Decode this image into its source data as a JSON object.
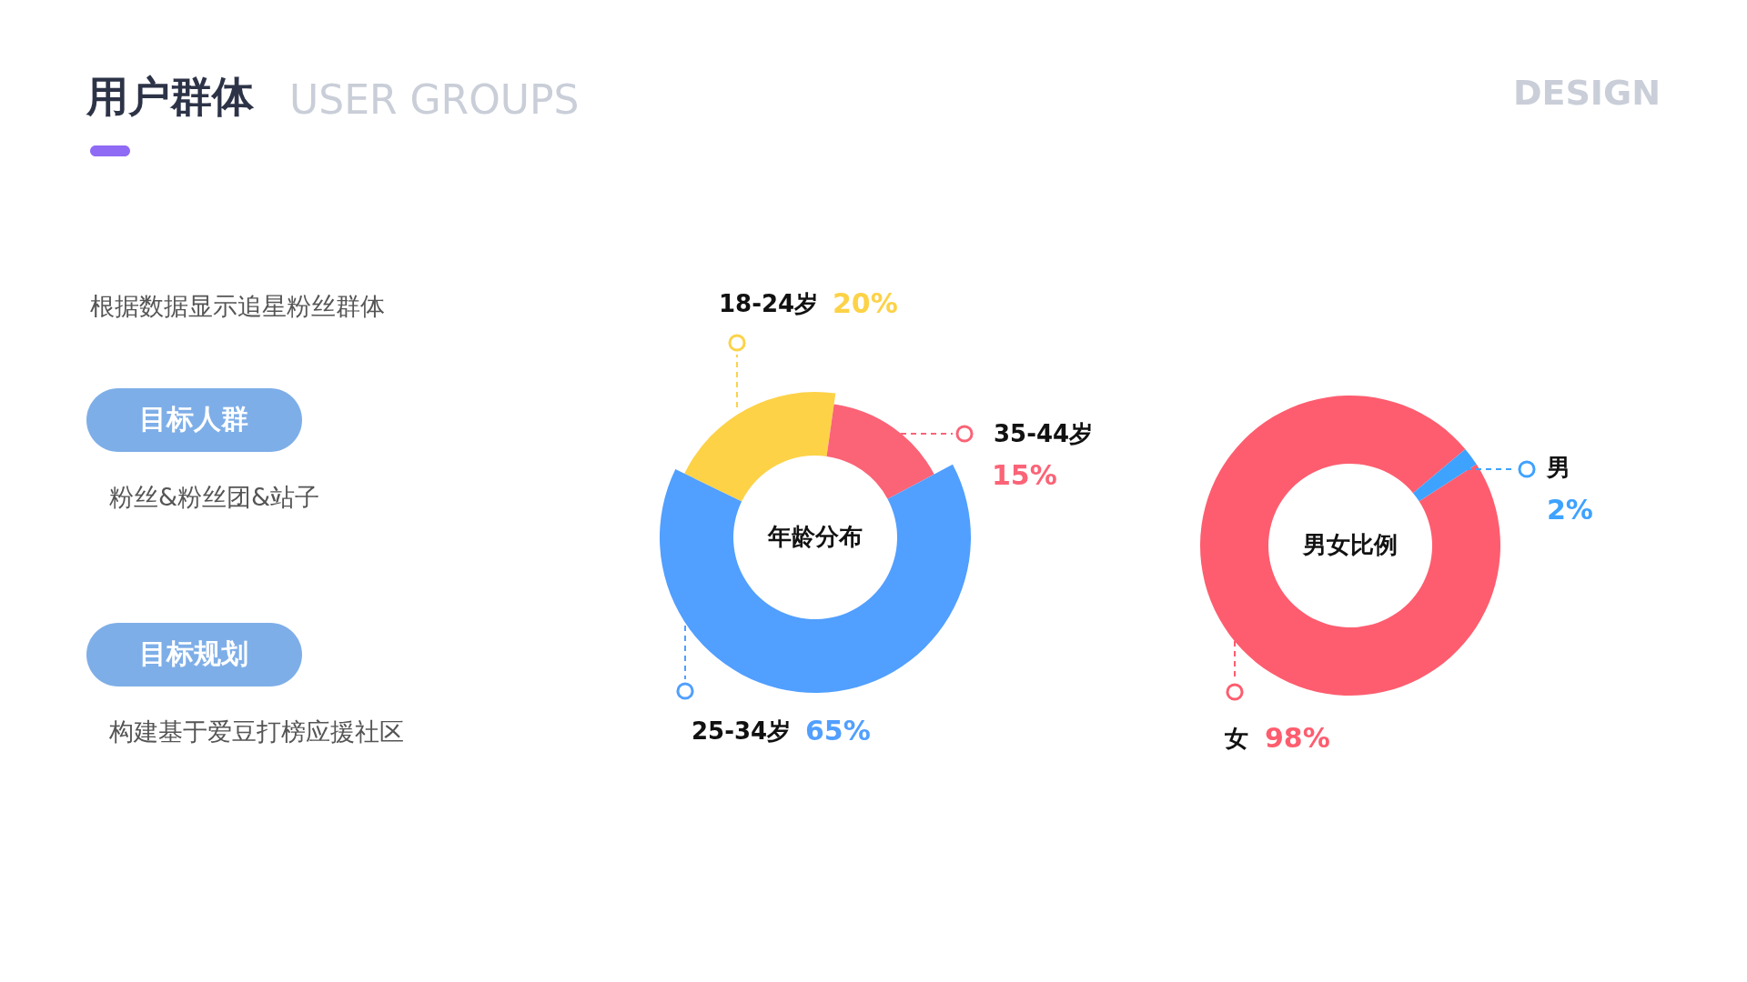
{
  "chart_data": [
    {
      "type": "other",
      "title": "用户群体",
      "subtitle": "USER GROUPS",
      "annotations": [
        "根据数据显示追星粉丝群体",
        "目标人群",
        "粉丝&粉丝团&站子",
        "目标规划",
        "构建基于爱豆打榜应援社区",
        "DESIGN"
      ]
    },
    {
      "type": "donut",
      "title": "年龄分布",
      "categories": [
        "18-24岁",
        "35-44岁",
        "25-34岁"
      ],
      "values": [
        20,
        15,
        65
      ],
      "colors": [
        "#fdd247",
        "#fb6377",
        "#519fff"
      ],
      "value_labels": [
        "20%",
        "15%",
        "65%"
      ]
    },
    {
      "type": "donut",
      "title": "男女比例",
      "categories": [
        "女",
        "男"
      ],
      "values": [
        98,
        2
      ],
      "colors": [
        "#fe5d6f",
        "#3ea2ff"
      ],
      "value_labels": [
        "98%",
        "2%"
      ]
    }
  ]
}
